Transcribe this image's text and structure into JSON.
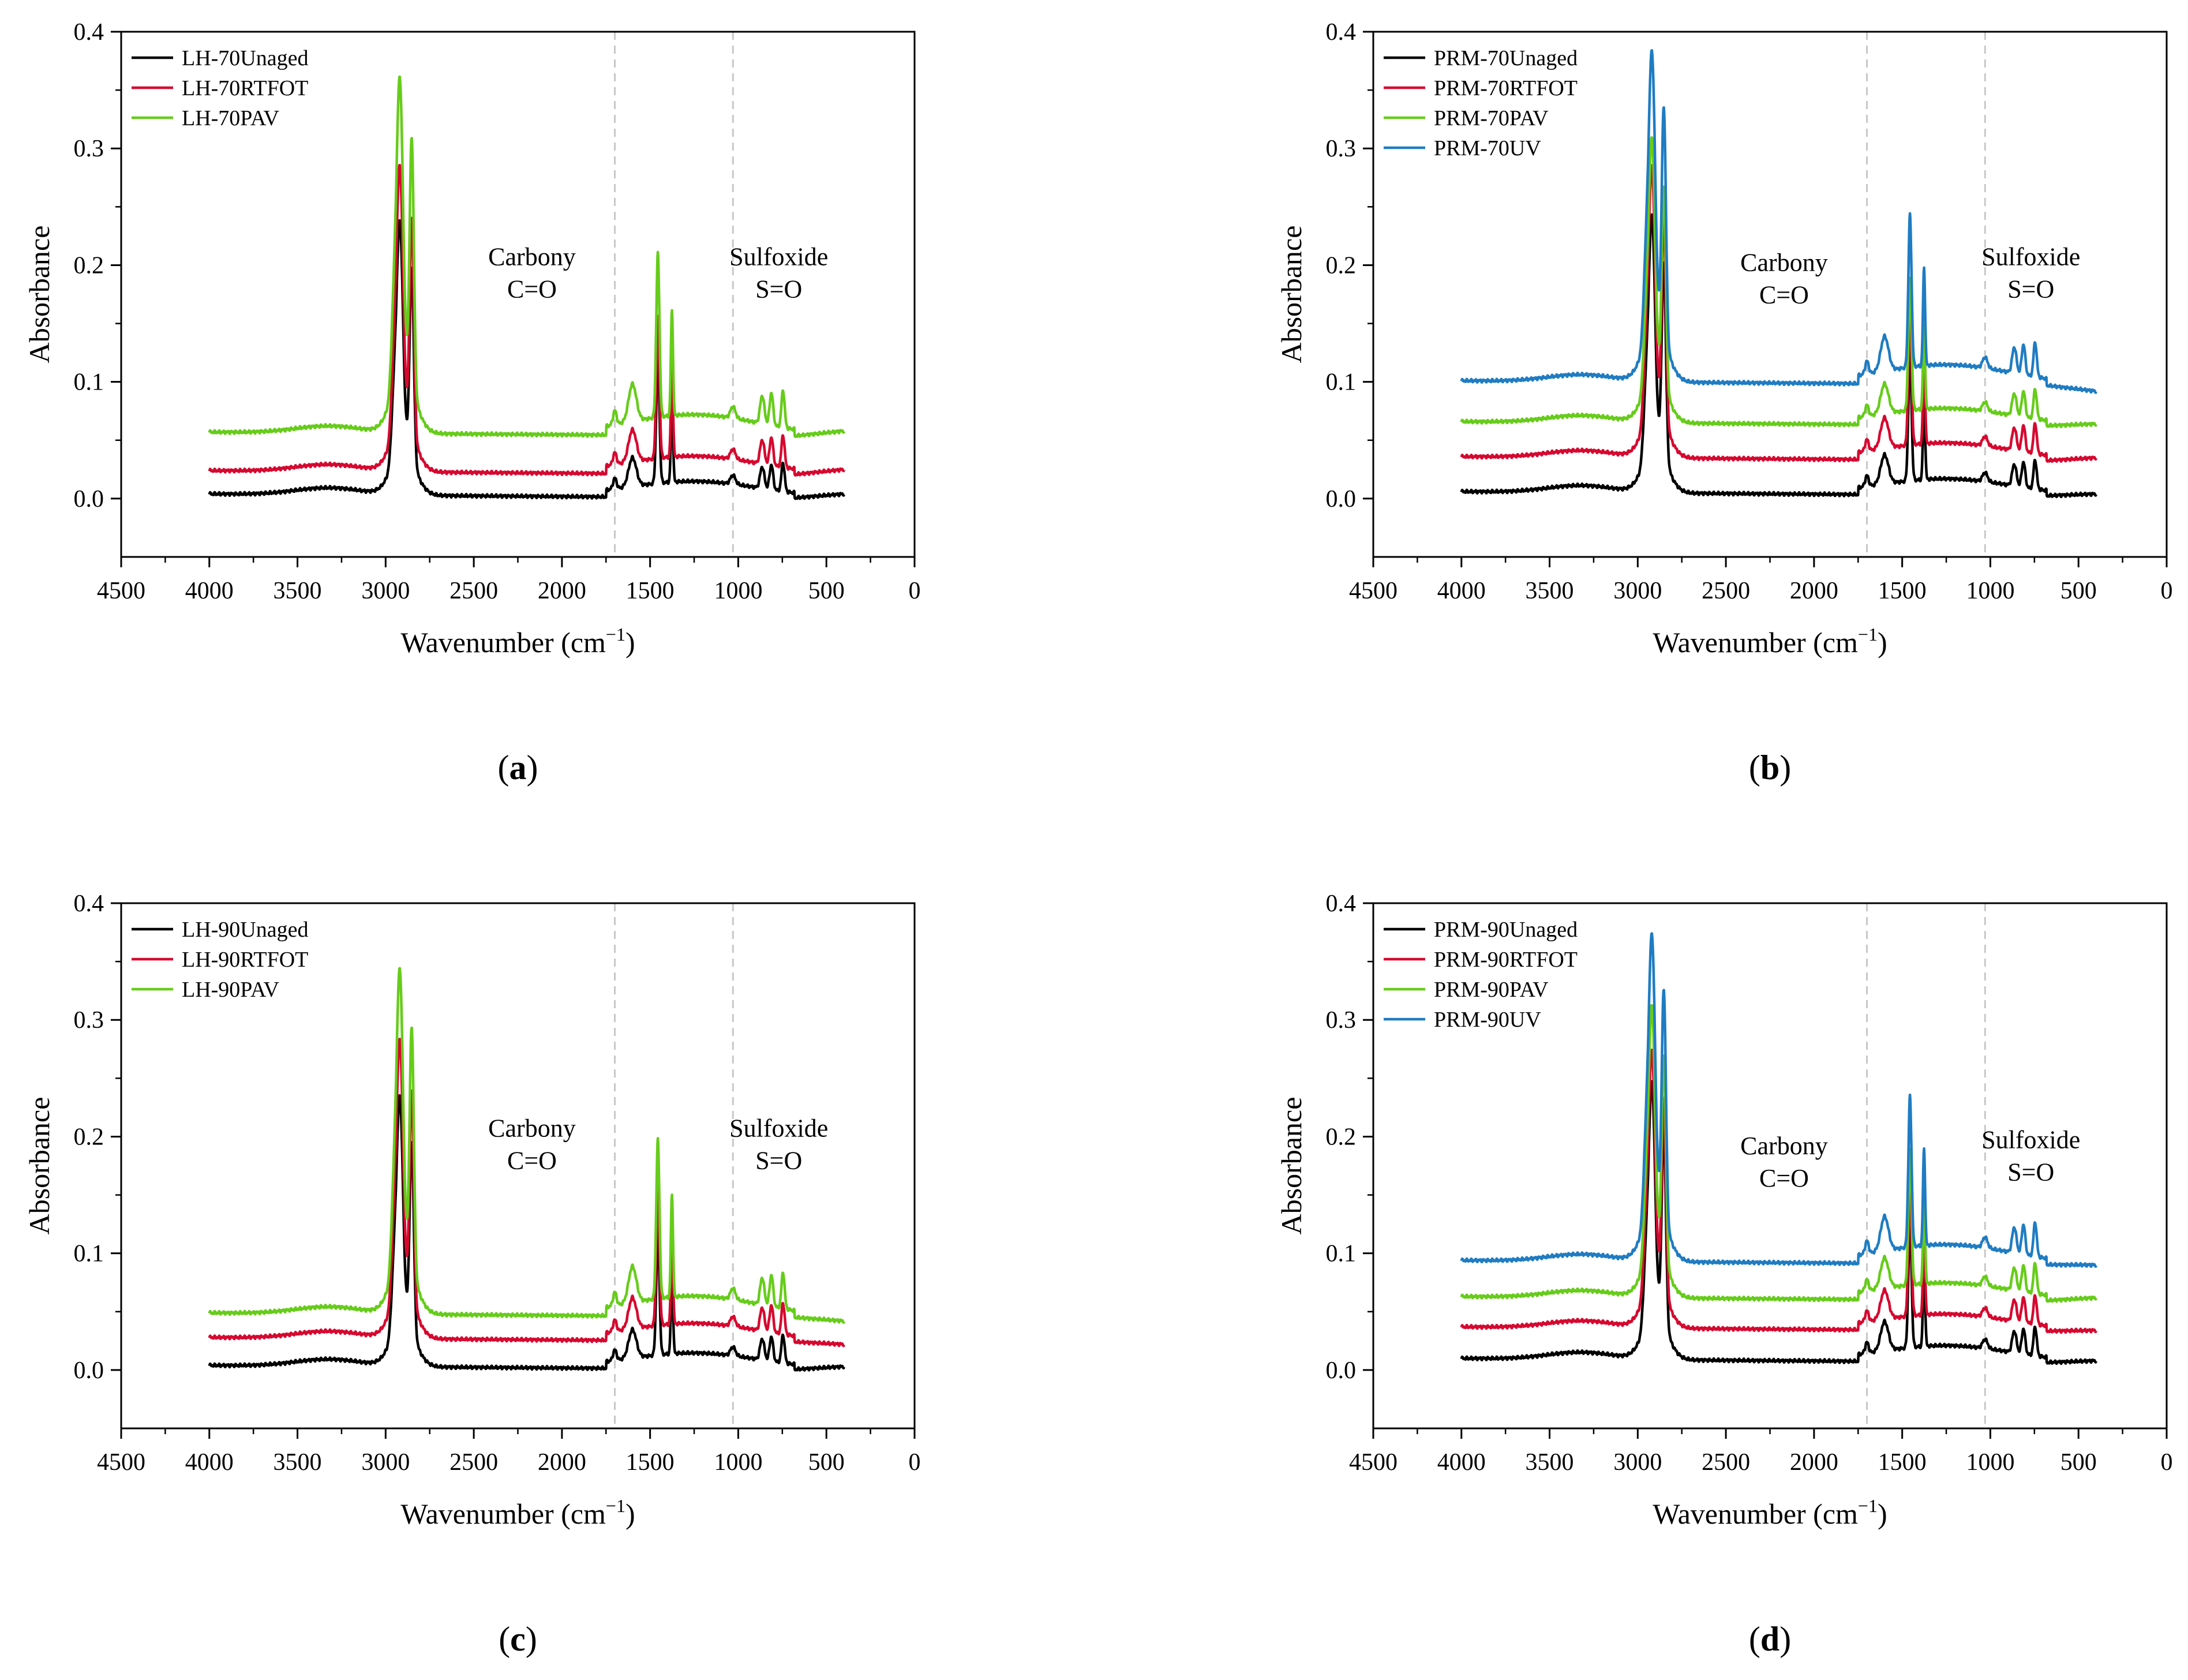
{
  "figure": {
    "panel_labels": [
      "a",
      "b",
      "c",
      "d"
    ]
  },
  "chart_data": [
    {
      "panel": "a",
      "type": "line",
      "xlabel": "Wavenumber (cm",
      "xlabel_sup": "−1",
      "xlabel_close": ")",
      "ylabel": "Absorbance",
      "xlim": [
        4500,
        0
      ],
      "ylim": [
        -0.05,
        0.4
      ],
      "xticks": [
        4500,
        4000,
        3500,
        3000,
        2500,
        2000,
        1500,
        1000,
        500,
        0
      ],
      "yticks": [
        0.0,
        0.1,
        0.2,
        0.3,
        0.4
      ],
      "ytick_labels": [
        "0.0",
        "0.1",
        "0.2",
        "0.3",
        "0.4"
      ],
      "reference_lines": [
        1700,
        1030
      ],
      "annotations": [
        {
          "line1": "Carbony",
          "line2": "C=O",
          "x": 2170,
          "y": 0.2
        },
        {
          "line1": "Sulfoxide",
          "line2": "S=O",
          "x": 770,
          "y": 0.2
        }
      ],
      "series": [
        {
          "name": "LH-70Unaged",
          "color": "#000000",
          "offset": 0.0,
          "peak_scale": 0.77,
          "y_end": 0.004
        },
        {
          "name": "LH-70RTFOT",
          "color": "#d6082f",
          "offset": 0.02,
          "peak_scale": 0.86,
          "y_end": 0.025
        },
        {
          "name": "LH-70PAV",
          "color": "#66cc1a",
          "offset": 0.053,
          "peak_scale": 1.0,
          "y_end": 0.058
        }
      ]
    },
    {
      "panel": "b",
      "type": "line",
      "xlabel": "Wavenumber (cm",
      "xlabel_sup": "−1",
      "xlabel_close": ")",
      "ylabel": "Absorbance",
      "xlim": [
        4500,
        0
      ],
      "ylim": [
        -0.05,
        0.4
      ],
      "xticks": [
        4500,
        4000,
        3500,
        3000,
        2500,
        2000,
        1500,
        1000,
        500,
        0
      ],
      "yticks": [
        0.0,
        0.1,
        0.2,
        0.3,
        0.4
      ],
      "ytick_labels": [
        "0.0",
        "0.1",
        "0.2",
        "0.3",
        "0.4"
      ],
      "reference_lines": [
        1700,
        1030
      ],
      "annotations": [
        {
          "line1": "Carbony",
          "line2": "C=O",
          "x": 2170,
          "y": 0.195
        },
        {
          "line1": "Sulfoxide",
          "line2": "S=O",
          "x": 770,
          "y": 0.2
        }
      ],
      "series": [
        {
          "name": "PRM-70Unaged",
          "color": "#000000",
          "offset": 0.002,
          "peak_scale": 0.78,
          "y_end": 0.004
        },
        {
          "name": "PRM-70RTFOT",
          "color": "#d6082f",
          "offset": 0.032,
          "peak_scale": 0.82,
          "y_end": 0.035
        },
        {
          "name": "PRM-70PAV",
          "color": "#66cc1a",
          "offset": 0.062,
          "peak_scale": 0.8,
          "y_end": 0.064
        },
        {
          "name": "PRM-70UV",
          "color": "#1f7cc2",
          "offset": 0.097,
          "peak_scale": 0.93,
          "y_end": 0.092
        }
      ]
    },
    {
      "panel": "c",
      "type": "line",
      "xlabel": "Wavenumber (cm",
      "xlabel_sup": "−1",
      "xlabel_close": ")",
      "ylabel": "Absorbance",
      "xlim": [
        4500,
        0
      ],
      "ylim": [
        -0.05,
        0.4
      ],
      "xticks": [
        4500,
        4000,
        3500,
        3000,
        2500,
        2000,
        1500,
        1000,
        500,
        0
      ],
      "yticks": [
        0.0,
        0.1,
        0.2,
        0.3,
        0.4
      ],
      "ytick_labels": [
        "0.0",
        "0.1",
        "0.2",
        "0.3",
        "0.4"
      ],
      "reference_lines": [
        1700,
        1030
      ],
      "annotations": [
        {
          "line1": "Carbony",
          "line2": "C=O",
          "x": 2170,
          "y": 0.2
        },
        {
          "line1": "Sulfoxide",
          "line2": "S=O",
          "x": 770,
          "y": 0.2
        }
      ],
      "series": [
        {
          "name": "LH-90Unaged",
          "color": "#000000",
          "offset": 0.0,
          "peak_scale": 0.76,
          "y_end": 0.003
        },
        {
          "name": "LH-90RTFOT",
          "color": "#d6082f",
          "offset": 0.024,
          "peak_scale": 0.84,
          "y_end": 0.022
        },
        {
          "name": "LH-90PAV",
          "color": "#66cc1a",
          "offset": 0.045,
          "peak_scale": 0.97,
          "y_end": 0.042
        }
      ]
    },
    {
      "panel": "d",
      "type": "line",
      "xlabel": "Wavenumber (cm",
      "xlabel_sup": "−1",
      "xlabel_close": ")",
      "ylabel": "Absorbance",
      "xlim": [
        4500,
        0
      ],
      "ylim": [
        -0.05,
        0.4
      ],
      "xticks": [
        4500,
        4000,
        3500,
        3000,
        2500,
        2000,
        1500,
        1000,
        500,
        0
      ],
      "yticks": [
        0.0,
        0.1,
        0.2,
        0.3,
        0.4
      ],
      "ytick_labels": [
        "0.0",
        "0.1",
        "0.2",
        "0.3",
        "0.4"
      ],
      "reference_lines": [
        1700,
        1030
      ],
      "annotations": [
        {
          "line1": "Carbony",
          "line2": "C=O",
          "x": 2170,
          "y": 0.185
        },
        {
          "line1": "Sulfoxide",
          "line2": "S=O",
          "x": 770,
          "y": 0.19
        }
      ],
      "series": [
        {
          "name": "PRM-90Unaged",
          "color": "#000000",
          "offset": 0.006,
          "peak_scale": 0.78,
          "y_end": 0.008
        },
        {
          "name": "PRM-90RTFOT",
          "color": "#d6082f",
          "offset": 0.033,
          "peak_scale": 0.78,
          "y_end": 0.034
        },
        {
          "name": "PRM-90PAV",
          "color": "#66cc1a",
          "offset": 0.059,
          "peak_scale": 0.82,
          "y_end": 0.062
        },
        {
          "name": "PRM-90UV",
          "color": "#1f7cc2",
          "offset": 0.09,
          "peak_scale": 0.92,
          "y_end": 0.09
        }
      ]
    }
  ]
}
